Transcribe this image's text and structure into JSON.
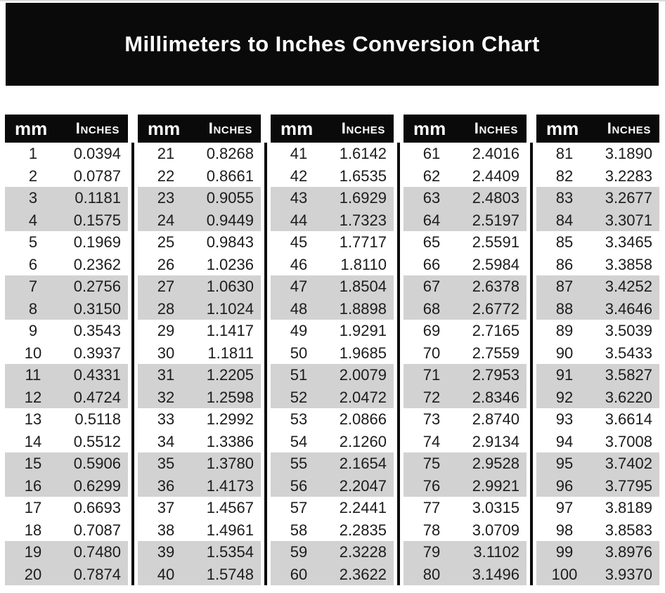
{
  "colors": {
    "banner_bg": "#0a0a0a",
    "header_bg": "#0a0a0a",
    "divider": "#0a0a0a",
    "stripe_gray": "#d2d2d2",
    "row_white": "#ffffff",
    "text": "#1c1c1c",
    "header_text": "#ffffff"
  },
  "chart_data": {
    "type": "table",
    "title": "Millimeters to Inches Conversion Chart",
    "columns": [
      "mm",
      "Inches"
    ],
    "layout": {
      "column_groups": 5,
      "rows_per_group": 20,
      "striping": "alternating pairs of rows: two white, two gray"
    },
    "blocks": [
      {
        "rows": [
          {
            "mm": "1",
            "in": "0.0394"
          },
          {
            "mm": "2",
            "in": "0.0787"
          },
          {
            "mm": "3",
            "in": "0.1181"
          },
          {
            "mm": "4",
            "in": "0.1575"
          },
          {
            "mm": "5",
            "in": "0.1969"
          },
          {
            "mm": "6",
            "in": "0.2362"
          },
          {
            "mm": "7",
            "in": "0.2756"
          },
          {
            "mm": "8",
            "in": "0.3150"
          },
          {
            "mm": "9",
            "in": "0.3543"
          },
          {
            "mm": "10",
            "in": "0.3937"
          },
          {
            "mm": "11",
            "in": "0.4331"
          },
          {
            "mm": "12",
            "in": "0.4724"
          },
          {
            "mm": "13",
            "in": "0.5118"
          },
          {
            "mm": "14",
            "in": "0.5512"
          },
          {
            "mm": "15",
            "in": "0.5906"
          },
          {
            "mm": "16",
            "in": "0.6299"
          },
          {
            "mm": "17",
            "in": "0.6693"
          },
          {
            "mm": "18",
            "in": "0.7087"
          },
          {
            "mm": "19",
            "in": "0.7480"
          },
          {
            "mm": "20",
            "in": "0.7874"
          }
        ]
      },
      {
        "rows": [
          {
            "mm": "21",
            "in": "0.8268"
          },
          {
            "mm": "22",
            "in": "0.8661"
          },
          {
            "mm": "23",
            "in": "0.9055"
          },
          {
            "mm": "24",
            "in": "0.9449"
          },
          {
            "mm": "25",
            "in": "0.9843"
          },
          {
            "mm": "26",
            "in": "1.0236"
          },
          {
            "mm": "27",
            "in": "1.0630"
          },
          {
            "mm": "28",
            "in": "1.1024"
          },
          {
            "mm": "29",
            "in": "1.1417"
          },
          {
            "mm": "30",
            "in": "1.1811"
          },
          {
            "mm": "31",
            "in": "1.2205"
          },
          {
            "mm": "32",
            "in": "1.2598"
          },
          {
            "mm": "33",
            "in": "1.2992"
          },
          {
            "mm": "34",
            "in": "1.3386"
          },
          {
            "mm": "35",
            "in": "1.3780"
          },
          {
            "mm": "36",
            "in": "1.4173"
          },
          {
            "mm": "37",
            "in": "1.4567"
          },
          {
            "mm": "38",
            "in": "1.4961"
          },
          {
            "mm": "39",
            "in": "1.5354"
          },
          {
            "mm": "40",
            "in": "1.5748"
          }
        ]
      },
      {
        "rows": [
          {
            "mm": "41",
            "in": "1.6142"
          },
          {
            "mm": "42",
            "in": "1.6535"
          },
          {
            "mm": "43",
            "in": "1.6929"
          },
          {
            "mm": "44",
            "in": "1.7323"
          },
          {
            "mm": "45",
            "in": "1.7717"
          },
          {
            "mm": "46",
            "in": "1.8110"
          },
          {
            "mm": "47",
            "in": "1.8504"
          },
          {
            "mm": "48",
            "in": "1.8898"
          },
          {
            "mm": "49",
            "in": "1.9291"
          },
          {
            "mm": "50",
            "in": "1.9685"
          },
          {
            "mm": "51",
            "in": "2.0079"
          },
          {
            "mm": "52",
            "in": "2.0472"
          },
          {
            "mm": "53",
            "in": "2.0866"
          },
          {
            "mm": "54",
            "in": "2.1260"
          },
          {
            "mm": "55",
            "in": "2.1654"
          },
          {
            "mm": "56",
            "in": "2.2047"
          },
          {
            "mm": "57",
            "in": "2.2441"
          },
          {
            "mm": "58",
            "in": "2.2835"
          },
          {
            "mm": "59",
            "in": "2.3228"
          },
          {
            "mm": "60",
            "in": "2.3622"
          }
        ]
      },
      {
        "rows": [
          {
            "mm": "61",
            "in": "2.4016"
          },
          {
            "mm": "62",
            "in": "2.4409"
          },
          {
            "mm": "63",
            "in": "2.4803"
          },
          {
            "mm": "64",
            "in": "2.5197"
          },
          {
            "mm": "65",
            "in": "2.5591"
          },
          {
            "mm": "66",
            "in": "2.5984"
          },
          {
            "mm": "67",
            "in": "2.6378"
          },
          {
            "mm": "68",
            "in": "2.6772"
          },
          {
            "mm": "69",
            "in": "2.7165"
          },
          {
            "mm": "70",
            "in": "2.7559"
          },
          {
            "mm": "71",
            "in": "2.7953"
          },
          {
            "mm": "72",
            "in": "2.8346"
          },
          {
            "mm": "73",
            "in": "2.8740"
          },
          {
            "mm": "74",
            "in": "2.9134"
          },
          {
            "mm": "75",
            "in": "2.9528"
          },
          {
            "mm": "76",
            "in": "2.9921"
          },
          {
            "mm": "77",
            "in": "3.0315"
          },
          {
            "mm": "78",
            "in": "3.0709"
          },
          {
            "mm": "79",
            "in": "3.1102"
          },
          {
            "mm": "80",
            "in": "3.1496"
          }
        ]
      },
      {
        "rows": [
          {
            "mm": "81",
            "in": "3.1890"
          },
          {
            "mm": "82",
            "in": "3.2283"
          },
          {
            "mm": "83",
            "in": "3.2677"
          },
          {
            "mm": "84",
            "in": "3.3071"
          },
          {
            "mm": "85",
            "in": "3.3465"
          },
          {
            "mm": "86",
            "in": "3.3858"
          },
          {
            "mm": "87",
            "in": "3.4252"
          },
          {
            "mm": "88",
            "in": "3.4646"
          },
          {
            "mm": "89",
            "in": "3.5039"
          },
          {
            "mm": "90",
            "in": "3.5433"
          },
          {
            "mm": "91",
            "in": "3.5827"
          },
          {
            "mm": "92",
            "in": "3.6220"
          },
          {
            "mm": "93",
            "in": "3.6614"
          },
          {
            "mm": "94",
            "in": "3.7008"
          },
          {
            "mm": "95",
            "in": "3.7402"
          },
          {
            "mm": "96",
            "in": "3.7795"
          },
          {
            "mm": "97",
            "in": "3.8189"
          },
          {
            "mm": "98",
            "in": "3.8583"
          },
          {
            "mm": "99",
            "in": "3.8976"
          },
          {
            "mm": "100",
            "in": "3.9370"
          }
        ]
      }
    ]
  }
}
